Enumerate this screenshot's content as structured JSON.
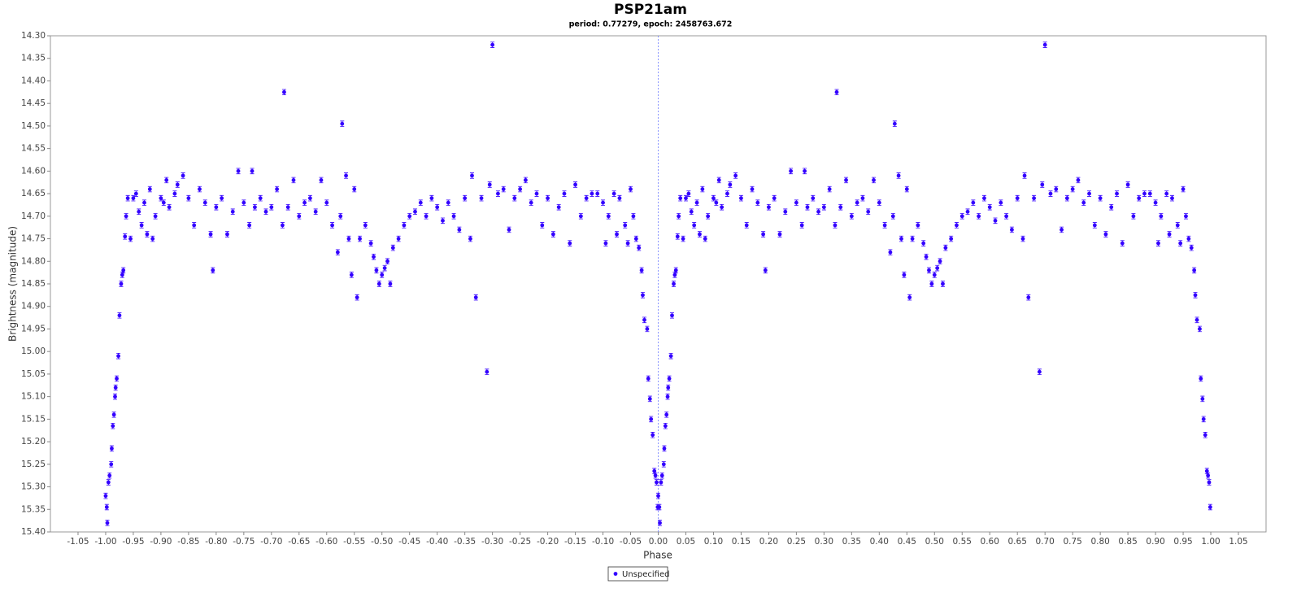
{
  "chart_data": {
    "type": "scatter",
    "title": "PSP21am",
    "subtitle": "period: 0.77279, epoch: 2458763.672",
    "x_label": "Phase",
    "y_label": "Brightness (magnitude)",
    "xlim": [
      -1.1,
      1.1
    ],
    "ylim": [
      14.3,
      15.4
    ],
    "y_inverted": true,
    "grid": false,
    "zero_line": true,
    "legend_position": "bottom",
    "xticks": [
      -1.05,
      {
        "value": -1,
        "label": "-1.00"
      },
      -0.95,
      {
        "value": -0.9,
        "label": "-0.90"
      },
      -0.85,
      {
        "value": -0.8,
        "label": "-0.80"
      },
      -0.75,
      {
        "value": -0.7,
        "label": "-0.70"
      },
      -0.65,
      {
        "value": -0.6,
        "label": "-0.60"
      },
      -0.55,
      {
        "value": -0.5,
        "label": "-0.50"
      },
      -0.45,
      {
        "value": -0.4,
        "label": "-0.40"
      },
      -0.35,
      {
        "value": -0.3,
        "label": "-0.30"
      },
      -0.25,
      {
        "value": -0.2,
        "label": "-0.20"
      },
      -0.15,
      {
        "value": -0.1,
        "label": "-0.10"
      },
      -0.05,
      {
        "value": 0,
        "label": "0.00"
      },
      0.05,
      {
        "value": 0.1,
        "label": "0.10"
      },
      0.15,
      {
        "value": 0.2,
        "label": "0.20"
      },
      0.25,
      {
        "value": 0.3,
        "label": "0.30"
      },
      0.35,
      {
        "value": 0.4,
        "label": "0.40"
      },
      0.45,
      {
        "value": 0.5,
        "label": "0.50"
      },
      0.55,
      {
        "value": 0.6,
        "label": "0.60"
      },
      0.65,
      {
        "value": 0.7,
        "label": "0.70"
      },
      0.75,
      {
        "value": 0.8,
        "label": "0.80"
      },
      0.85,
      {
        "value": 0.9,
        "label": "0.90"
      },
      0.95,
      {
        "value": 1,
        "label": "1.00"
      },
      1.05
    ],
    "yticks": [
      {
        "value": 14.3,
        "label": "14.30"
      },
      14.35,
      {
        "value": 14.4,
        "label": "14.40"
      },
      14.45,
      {
        "value": 14.5,
        "label": "14.50"
      },
      14.55,
      {
        "value": 14.6,
        "label": "14.60"
      },
      14.65,
      {
        "value": 14.7,
        "label": "14.70"
      },
      14.75,
      {
        "value": 14.8,
        "label": "14.80"
      },
      14.85,
      {
        "value": 14.9,
        "label": "14.90"
      },
      14.95,
      {
        "value": 15,
        "label": "15.00"
      },
      15.05,
      {
        "value": 15.1,
        "label": "15.10"
      },
      15.15,
      {
        "value": 15.2,
        "label": "15.20"
      },
      15.25,
      {
        "value": 15.3,
        "label": "15.30"
      },
      15.35,
      {
        "value": 15.4,
        "label": "15.40"
      }
    ],
    "series": [
      {
        "name": "Unspecified",
        "color": "#3300ff",
        "error": 0.006,
        "x": [
          -1.0,
          -0.998,
          -0.997,
          -0.995,
          -0.993,
          -0.99,
          -0.989,
          -0.987,
          -0.985,
          -0.983,
          -0.982,
          -0.98,
          -0.977,
          -0.975,
          -0.972,
          -0.97,
          -0.968,
          -0.965,
          -0.963,
          -0.96,
          -0.955,
          -0.95,
          -0.945,
          -0.94,
          -0.935,
          -0.93,
          -0.925,
          -0.92,
          -0.915,
          -0.91,
          -0.9,
          -0.895,
          -0.89,
          -0.885,
          -0.875,
          -0.87,
          -0.86,
          -0.85,
          -0.84,
          -0.83,
          -0.82,
          -0.81,
          -0.806,
          -0.8,
          -0.79,
          -0.78,
          -0.77,
          -0.76,
          -0.75,
          -0.74,
          -0.735,
          -0.73,
          -0.72,
          -0.71,
          -0.7,
          -0.69,
          -0.68,
          -0.677,
          -0.67,
          -0.66,
          -0.65,
          -0.64,
          -0.63,
          -0.62,
          -0.61,
          -0.6,
          -0.59,
          -0.58,
          -0.575,
          -0.572,
          -0.565,
          -0.56,
          -0.555,
          -0.55,
          -0.545,
          -0.54,
          -0.53,
          -0.52,
          -0.515,
          -0.51,
          -0.505,
          -0.5,
          -0.495,
          -0.49,
          -0.485,
          -0.48,
          -0.47,
          -0.46,
          -0.45,
          -0.44,
          -0.43,
          -0.42,
          -0.41,
          -0.4,
          -0.39,
          -0.38,
          -0.37,
          -0.36,
          -0.35,
          -0.34,
          -0.337,
          -0.33,
          -0.32,
          -0.31,
          -0.305,
          -0.3,
          -0.29,
          -0.28,
          -0.27,
          -0.26,
          -0.25,
          -0.24,
          -0.23,
          -0.22,
          -0.21,
          -0.2,
          -0.19,
          -0.18,
          -0.17,
          -0.16,
          -0.15,
          -0.14,
          -0.13,
          -0.12,
          -0.11,
          -0.1,
          -0.095,
          -0.09,
          -0.08,
          -0.075,
          -0.07,
          -0.06,
          -0.055,
          -0.05,
          -0.045,
          -0.04,
          -0.035,
          -0.03,
          -0.028,
          -0.025,
          -0.02,
          -0.018,
          -0.015,
          -0.013,
          -0.01,
          -0.007,
          -0.005,
          -0.003,
          -0.001,
          0,
          0.002,
          0.003,
          0.005,
          0.007,
          0.01,
          0.011,
          0.013,
          0.015,
          0.017,
          0.018,
          0.02,
          0.023,
          0.025,
          0.028,
          0.03,
          0.032,
          0.035,
          0.037,
          0.04,
          0.045,
          0.05,
          0.055,
          0.06,
          0.065,
          0.07,
          0.075,
          0.08,
          0.085,
          0.09,
          0.1,
          0.105,
          0.11,
          0.115,
          0.125,
          0.13,
          0.14,
          0.15,
          0.16,
          0.17,
          0.18,
          0.19,
          0.194,
          0.2,
          0.21,
          0.22,
          0.23,
          0.24,
          0.25,
          0.26,
          0.265,
          0.27,
          0.28,
          0.29,
          0.3,
          0.31,
          0.32,
          0.323,
          0.33,
          0.34,
          0.35,
          0.36,
          0.37,
          0.38,
          0.39,
          0.4,
          0.41,
          0.42,
          0.425,
          0.428,
          0.435,
          0.44,
          0.445,
          0.45,
          0.455,
          0.46,
          0.47,
          0.48,
          0.485,
          0.49,
          0.495,
          0.5,
          0.505,
          0.51,
          0.515,
          0.52,
          0.53,
          0.54,
          0.55,
          0.56,
          0.57,
          0.58,
          0.59,
          0.6,
          0.61,
          0.62,
          0.63,
          0.64,
          0.65,
          0.66,
          0.663,
          0.67,
          0.68,
          0.69,
          0.695,
          0.7,
          0.71,
          0.72,
          0.73,
          0.74,
          0.75,
          0.76,
          0.77,
          0.78,
          0.79,
          0.8,
          0.81,
          0.82,
          0.83,
          0.84,
          0.85,
          0.86,
          0.87,
          0.88,
          0.89,
          0.9,
          0.905,
          0.91,
          0.92,
          0.925,
          0.93,
          0.94,
          0.945,
          0.95,
          0.955,
          0.96,
          0.965,
          0.97,
          0.972,
          0.975,
          0.98,
          0.982,
          0.985,
          0.987,
          0.99,
          0.993,
          0.995,
          0.997,
          0.999
        ],
        "values": [
          15.32,
          15.345,
          15.38,
          15.29,
          15.275,
          15.25,
          15.215,
          15.165,
          15.14,
          15.1,
          15.08,
          15.06,
          15.01,
          14.92,
          14.85,
          14.83,
          14.82,
          14.745,
          14.7,
          14.66,
          14.75,
          14.66,
          14.65,
          14.69,
          14.72,
          14.67,
          14.74,
          14.64,
          14.75,
          14.7,
          14.66,
          14.67,
          14.62,
          14.68,
          14.65,
          14.63,
          14.61,
          14.66,
          14.72,
          14.64,
          14.67,
          14.74,
          14.82,
          14.68,
          14.66,
          14.74,
          14.69,
          14.6,
          14.67,
          14.72,
          14.6,
          14.68,
          14.66,
          14.69,
          14.68,
          14.64,
          14.72,
          14.425,
          14.68,
          14.62,
          14.7,
          14.67,
          14.66,
          14.69,
          14.62,
          14.67,
          14.72,
          14.78,
          14.7,
          14.495,
          14.61,
          14.75,
          14.83,
          14.64,
          14.88,
          14.75,
          14.72,
          14.76,
          14.79,
          14.82,
          14.85,
          14.83,
          14.815,
          14.8,
          14.85,
          14.77,
          14.75,
          14.72,
          14.7,
          14.69,
          14.67,
          14.7,
          14.66,
          14.68,
          14.71,
          14.67,
          14.7,
          14.73,
          14.66,
          14.75,
          14.61,
          14.88,
          14.66,
          15.045,
          14.63,
          14.32,
          14.65,
          14.64,
          14.73,
          14.66,
          14.64,
          14.62,
          14.67,
          14.65,
          14.72,
          14.66,
          14.74,
          14.68,
          14.65,
          14.76,
          14.63,
          14.7,
          14.66,
          14.65,
          14.65,
          14.67,
          14.76,
          14.7,
          14.65,
          14.74,
          14.66,
          14.72,
          14.76,
          14.64,
          14.7,
          14.75,
          14.77,
          14.82,
          14.875,
          14.93,
          14.95,
          15.06,
          15.105,
          15.15,
          15.185,
          15.265,
          15.275,
          15.29,
          15.345,
          15.32,
          15.345,
          15.38,
          15.29,
          15.275,
          15.25,
          15.215,
          15.165,
          15.14,
          15.1,
          15.08,
          15.06,
          15.01,
          14.92,
          14.85,
          14.83,
          14.82,
          14.745,
          14.7,
          14.66,
          14.75,
          14.66,
          14.65,
          14.69,
          14.72,
          14.67,
          14.74,
          14.64,
          14.75,
          14.7,
          14.66,
          14.67,
          14.62,
          14.68,
          14.65,
          14.63,
          14.61,
          14.66,
          14.72,
          14.64,
          14.67,
          14.74,
          14.82,
          14.68,
          14.66,
          14.74,
          14.69,
          14.6,
          14.67,
          14.72,
          14.6,
          14.68,
          14.66,
          14.69,
          14.68,
          14.64,
          14.72,
          14.425,
          14.68,
          14.62,
          14.7,
          14.67,
          14.66,
          14.69,
          14.62,
          14.67,
          14.72,
          14.78,
          14.7,
          14.495,
          14.61,
          14.75,
          14.83,
          14.64,
          14.88,
          14.75,
          14.72,
          14.76,
          14.79,
          14.82,
          14.85,
          14.83,
          14.815,
          14.8,
          14.85,
          14.77,
          14.75,
          14.72,
          14.7,
          14.69,
          14.67,
          14.7,
          14.66,
          14.68,
          14.71,
          14.67,
          14.7,
          14.73,
          14.66,
          14.75,
          14.61,
          14.88,
          14.66,
          15.045,
          14.63,
          14.32,
          14.65,
          14.64,
          14.73,
          14.66,
          14.64,
          14.62,
          14.67,
          14.65,
          14.72,
          14.66,
          14.74,
          14.68,
          14.65,
          14.76,
          14.63,
          14.7,
          14.66,
          14.65,
          14.65,
          14.67,
          14.76,
          14.7,
          14.65,
          14.74,
          14.66,
          14.72,
          14.76,
          14.64,
          14.7,
          14.75,
          14.77,
          14.82,
          14.875,
          14.93,
          14.95,
          15.06,
          15.105,
          15.15,
          15.185,
          15.265,
          15.275,
          15.29,
          15.345
        ]
      }
    ]
  }
}
